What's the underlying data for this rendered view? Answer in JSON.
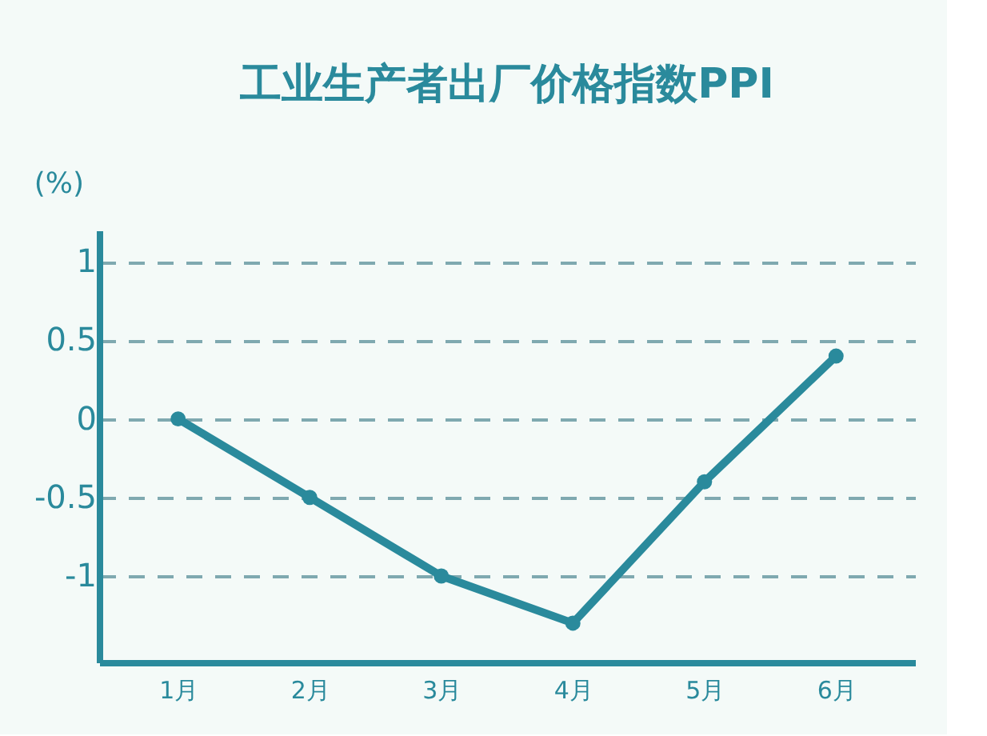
{
  "chart_data": {
    "type": "line",
    "title": "工业生产者出厂价格指数PPI",
    "ylabel": "(%)",
    "categories": [
      "1月",
      "2月",
      "3月",
      "4月",
      "5月",
      "6月"
    ],
    "series": [
      {
        "color": "#2a8a9c",
        "values": [
          0,
          -0.5,
          -1,
          -1.3,
          -0.4,
          0.4
        ]
      }
    ],
    "ylim": [
      -1.55,
      1.2
    ],
    "yticks": [
      1,
      0.5,
      0,
      -0.5,
      -1
    ],
    "grid": "y",
    "marker": "circle",
    "line_style": "solid",
    "legend": false
  }
}
